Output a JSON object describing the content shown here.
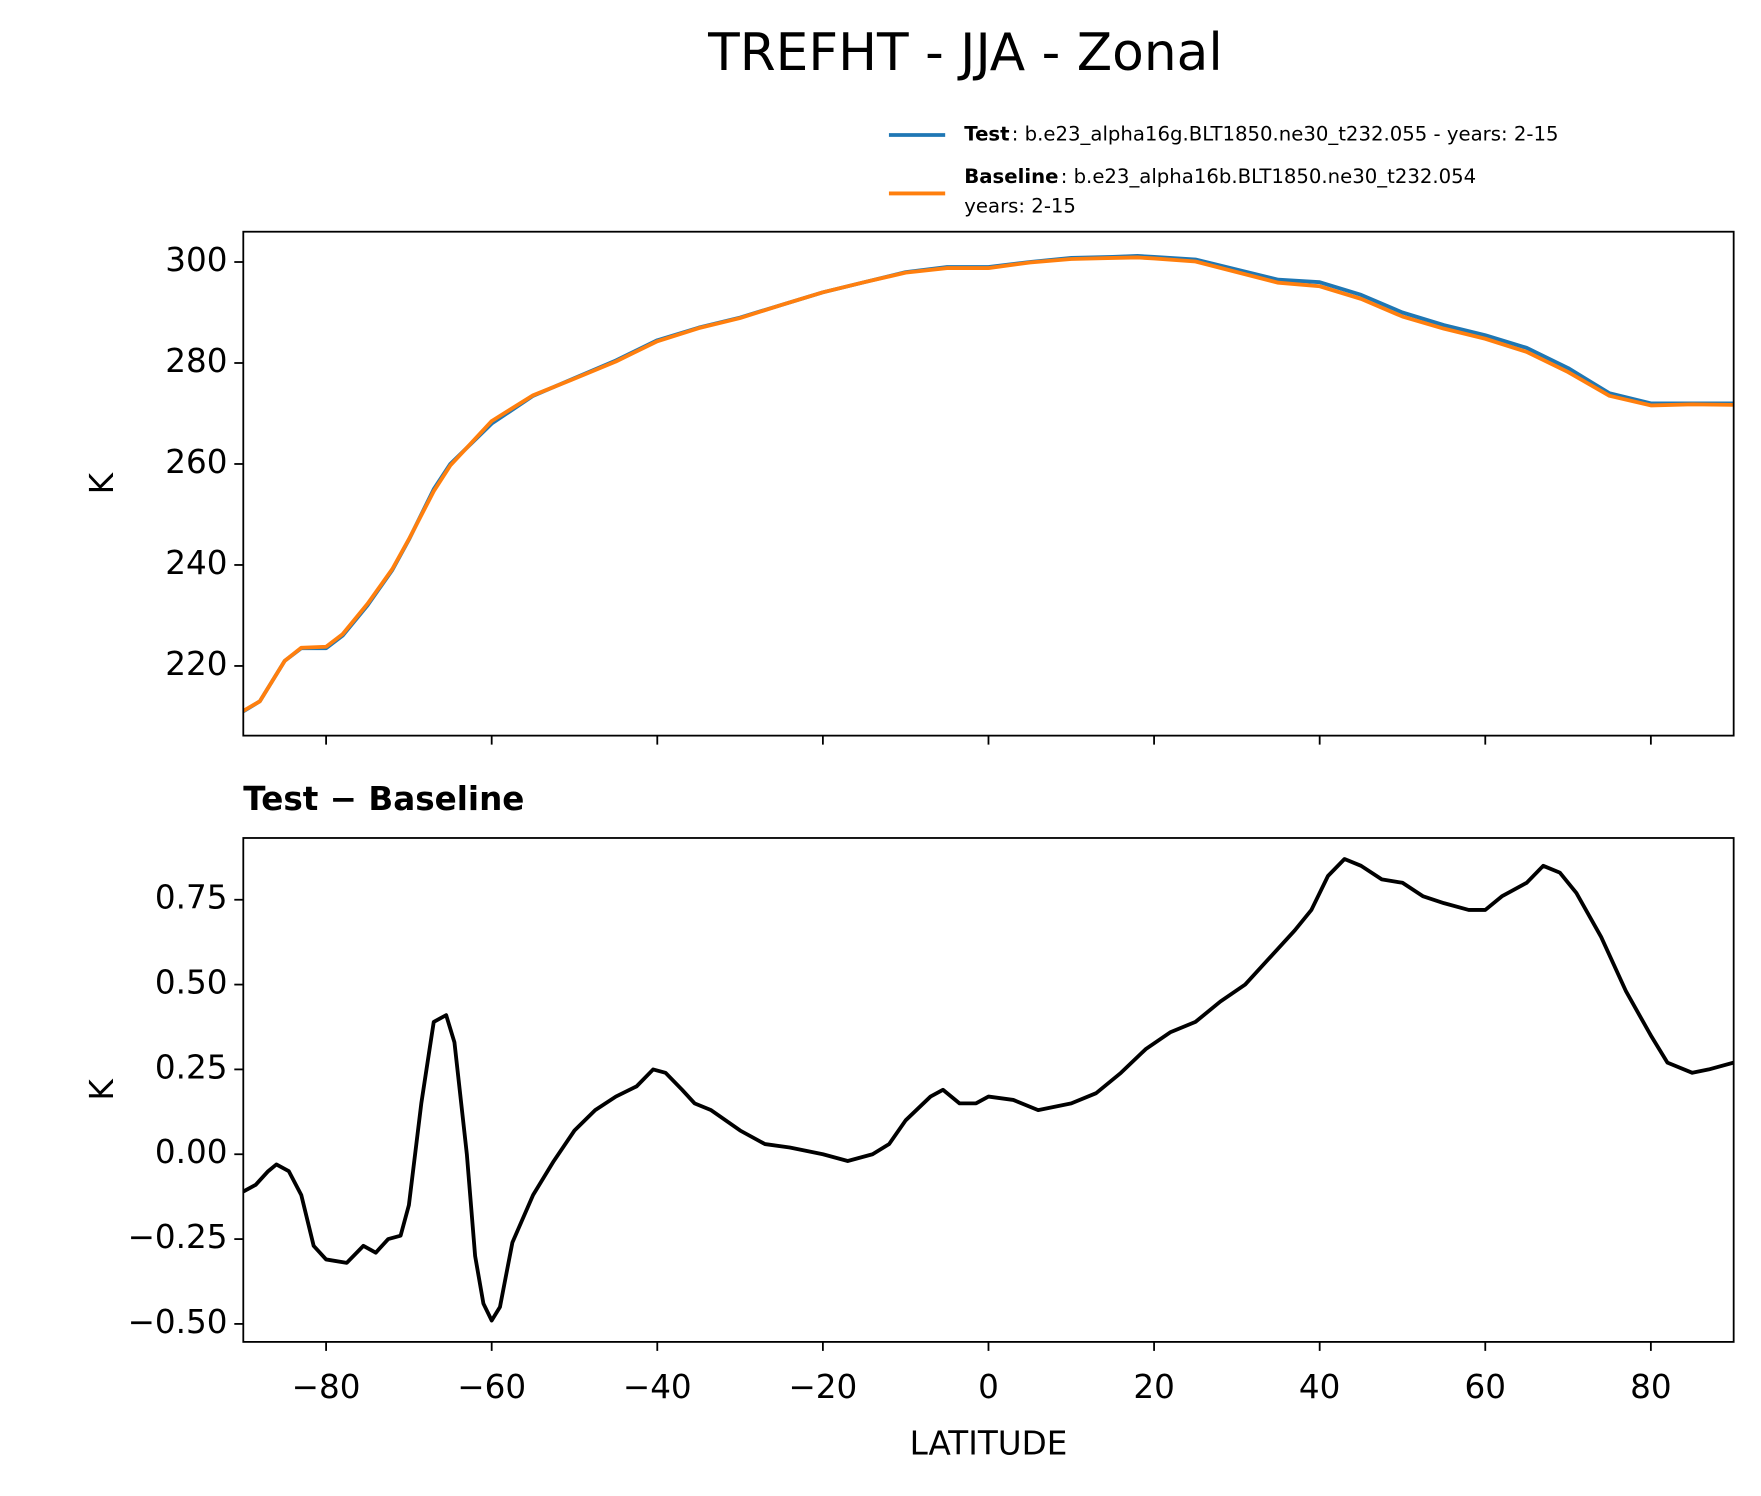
{
  "title": "TREFHT - JJA - Zonal",
  "chart_data": [
    {
      "type": "line",
      "ylabel": "K",
      "xlim": [
        -90,
        90
      ],
      "xticks": [
        -80,
        -60,
        -40,
        -20,
        0,
        20,
        40,
        60,
        80
      ],
      "ylim": [
        206.2,
        306.0
      ],
      "yticks": [
        220,
        240,
        260,
        280,
        300
      ],
      "legend": "upper right",
      "x": [
        -90,
        -88,
        -85,
        -83,
        -80,
        -78,
        -75,
        -72,
        -70,
        -67,
        -65,
        -60,
        -55,
        -50,
        -45,
        -40,
        -35,
        -30,
        -25,
        -20,
        -15,
        -10,
        -5,
        0,
        5,
        10,
        15,
        18,
        20,
        25,
        30,
        35,
        40,
        45,
        50,
        55,
        60,
        65,
        70,
        75,
        80,
        85,
        90
      ],
      "series": [
        {
          "name": "Test",
          "description": [
            ": b.e23_alpha16g.BLT1850.ne30_t232.055 - years: 2-15"
          ],
          "color": "#1f77b4",
          "values": [
            211,
            213,
            221,
            223.5,
            223.5,
            226,
            232,
            239,
            245,
            255,
            260,
            268,
            273.5,
            277,
            280.5,
            284.5,
            287,
            289,
            291.5,
            294,
            296,
            298,
            299,
            299,
            300,
            300.8,
            301,
            301.2,
            301,
            300.5,
            298.5,
            296.5,
            296,
            293.5,
            290,
            287.5,
            285.5,
            283,
            279,
            274,
            272,
            272,
            272
          ]
        },
        {
          "name": "Baseline",
          "description": [
            ": b.e23_alpha16b.BLT1850.ne30_t232.054",
            "years: 2-15"
          ],
          "color": "#ff7f0e",
          "values": [
            211.1,
            213.0,
            221.0,
            223.6,
            223.8,
            226.3,
            232.3,
            239.2,
            245.1,
            254.6,
            259.7,
            268.5,
            273.6,
            276.9,
            280.3,
            284.3,
            286.9,
            288.9,
            291.5,
            294.0,
            296.0,
            297.9,
            298.8,
            298.8,
            299.9,
            300.6,
            300.8,
            300.9,
            300.7,
            300.1,
            298.0,
            295.9,
            295.2,
            292.7,
            289.2,
            286.8,
            284.8,
            282.2,
            278.2,
            273.5,
            271.6,
            271.8,
            271.7
          ]
        }
      ]
    },
    {
      "type": "line",
      "title": "Test − Baseline",
      "xlabel": "LATITUDE",
      "ylabel": "K",
      "xlim": [
        -90,
        90
      ],
      "xticks": [
        {
          "value": -80,
          "label": "−80"
        },
        {
          "value": -60,
          "label": "−60"
        },
        {
          "value": -40,
          "label": "−40"
        },
        {
          "value": -20,
          "label": "−20"
        },
        0,
        20,
        40,
        60,
        80
      ],
      "ylim": [
        -0.553,
        0.932
      ],
      "yticks": [
        {
          "value": -0.5,
          "label": "−0.50"
        },
        {
          "value": -0.25,
          "label": "−0.25"
        },
        {
          "value": 0,
          "label": "0.00"
        },
        0.25,
        {
          "value": 0.5,
          "label": "0.50"
        },
        0.75
      ],
      "x": [
        -90,
        -88.5,
        -87,
        -86,
        -84.5,
        -83,
        -81.5,
        -80,
        -77.5,
        -75.5,
        -74,
        -72.5,
        -71,
        -70,
        -68.5,
        -67,
        -65.5,
        -64.5,
        -63,
        -62,
        -61,
        -60,
        -59,
        -57.5,
        -55,
        -52.5,
        -50,
        -47.5,
        -45,
        -42.5,
        -40.5,
        -39,
        -37,
        -35.5,
        -33.5,
        -30,
        -27,
        -24,
        -20,
        -17,
        -14,
        -12,
        -10,
        -7,
        -5.5,
        -3.5,
        -1.5,
        0,
        3,
        6,
        10,
        13,
        16,
        19,
        22,
        25,
        28,
        31,
        34,
        37,
        39,
        41,
        43,
        45,
        47.5,
        50,
        52.5,
        55,
        58,
        60,
        62,
        65,
        67,
        69,
        71,
        74,
        77,
        80,
        82,
        85,
        87,
        90
      ],
      "series": [
        {
          "color": "#000000",
          "values": [
            -0.11,
            -0.09,
            -0.05,
            -0.03,
            -0.05,
            -0.12,
            -0.27,
            -0.31,
            -0.32,
            -0.27,
            -0.29,
            -0.25,
            -0.24,
            -0.15,
            0.15,
            0.39,
            0.41,
            0.33,
            0.0,
            -0.3,
            -0.44,
            -0.49,
            -0.45,
            -0.26,
            -0.12,
            -0.02,
            0.07,
            0.13,
            0.17,
            0.2,
            0.25,
            0.24,
            0.19,
            0.15,
            0.13,
            0.07,
            0.03,
            0.02,
            0.0,
            -0.02,
            0.0,
            0.03,
            0.1,
            0.17,
            0.19,
            0.15,
            0.15,
            0.17,
            0.16,
            0.13,
            0.15,
            0.18,
            0.24,
            0.31,
            0.36,
            0.39,
            0.45,
            0.5,
            0.58,
            0.66,
            0.72,
            0.82,
            0.87,
            0.85,
            0.81,
            0.8,
            0.76,
            0.74,
            0.72,
            0.72,
            0.76,
            0.8,
            0.85,
            0.83,
            0.77,
            0.64,
            0.48,
            0.35,
            0.27,
            0.24,
            0.25,
            0.27
          ]
        }
      ]
    }
  ]
}
